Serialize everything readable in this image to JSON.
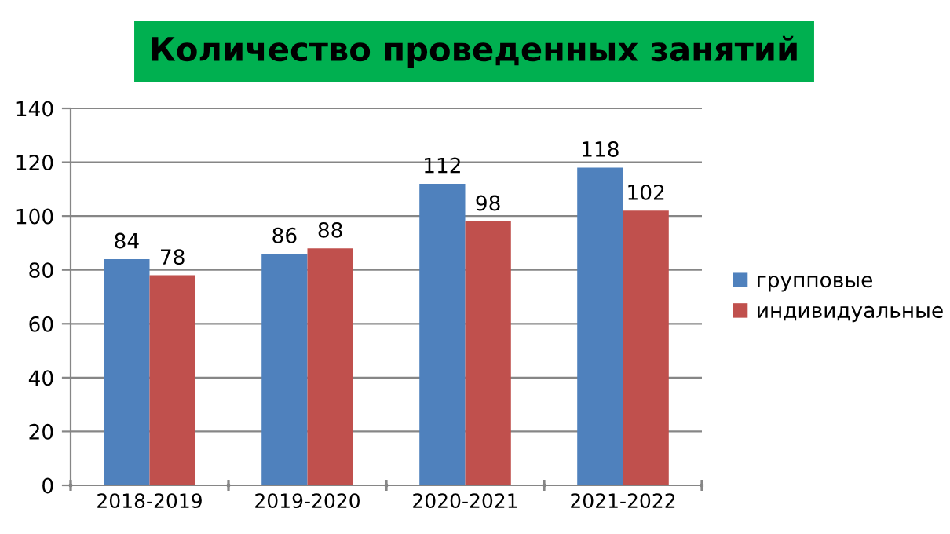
{
  "chart_data": {
    "type": "bar",
    "title": "Количество проведенных занятий",
    "categories": [
      "2018-2019",
      "2019-2020",
      "2020-2021",
      "2021-2022"
    ],
    "series": [
      {
        "name": "групповые",
        "color": "#4f81bd",
        "values": [
          84,
          86,
          112,
          118
        ]
      },
      {
        "name": "индивидуальные",
        "color": "#c0504d",
        "values": [
          78,
          88,
          98,
          102
        ]
      }
    ],
    "ylim": [
      0,
      140
    ],
    "yticks": [
      0,
      20,
      40,
      60,
      80,
      100,
      120,
      140
    ],
    "grid": "y",
    "legend": "right",
    "data_labels": true
  }
}
